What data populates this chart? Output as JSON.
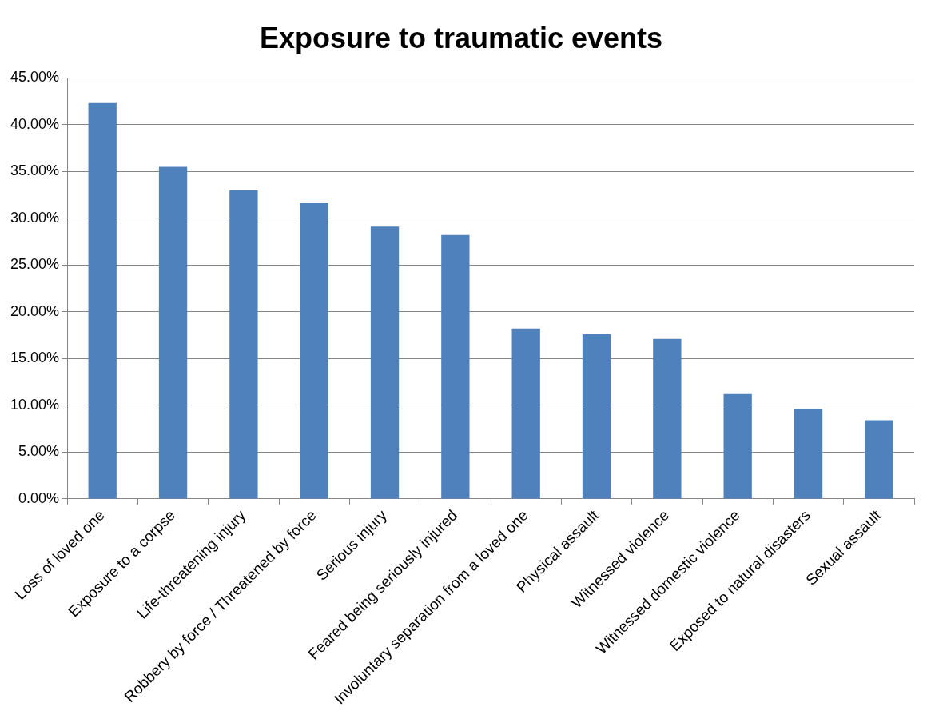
{
  "chart_data": {
    "type": "bar",
    "title": "Exposure to traumatic events",
    "categories": [
      "Loss of loved one",
      "Exposure to a corpse",
      "Life-threatening injury",
      "Robbery by force / Threatened by force",
      "Serious injury",
      "Feared being seriously injured",
      "Involuntary separation from a loved one",
      "Physical assault",
      "Witnessed violence",
      "Witnessed domestic violence",
      "Exposed to natural disasters",
      "Sexual assault"
    ],
    "values": [
      42.3,
      35.5,
      33.0,
      31.6,
      29.1,
      28.2,
      18.2,
      17.6,
      17.1,
      11.2,
      9.6,
      8.4
    ],
    "color": "#4f81bd",
    "ylim": [
      0,
      45
    ],
    "yticks": [
      {
        "value": 0,
        "label": "0.00%"
      },
      {
        "value": 5,
        "label": "5.00%"
      },
      {
        "value": 10,
        "label": "10.00%"
      },
      {
        "value": 15,
        "label": "15.00%"
      },
      {
        "value": 20,
        "label": "20.00%"
      },
      {
        "value": 25,
        "label": "25.00%"
      },
      {
        "value": 30,
        "label": "30.00%"
      },
      {
        "value": 35,
        "label": "35.00%"
      },
      {
        "value": 40,
        "label": "40.00%"
      },
      {
        "value": 45,
        "label": "45.00%"
      }
    ],
    "grid": "y"
  }
}
